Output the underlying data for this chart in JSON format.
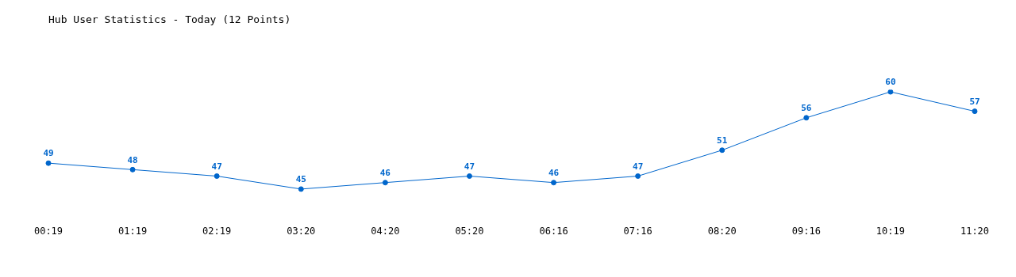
{
  "chart_data": {
    "type": "line",
    "title": "Hub User Statistics - Today (12 Points)",
    "categories": [
      "00:19",
      "01:19",
      "02:19",
      "03:20",
      "04:20",
      "05:20",
      "06:16",
      "07:16",
      "08:20",
      "09:16",
      "10:19",
      "11:20"
    ],
    "series": [
      {
        "color": "#0066cc",
        "values": [
          49,
          48,
          47,
          45,
          46,
          47,
          46,
          47,
          51,
          56,
          60,
          57
        ]
      }
    ],
    "data_labels": true,
    "marker": "circle",
    "grid": false,
    "legend": false,
    "tick_labels": "x"
  }
}
